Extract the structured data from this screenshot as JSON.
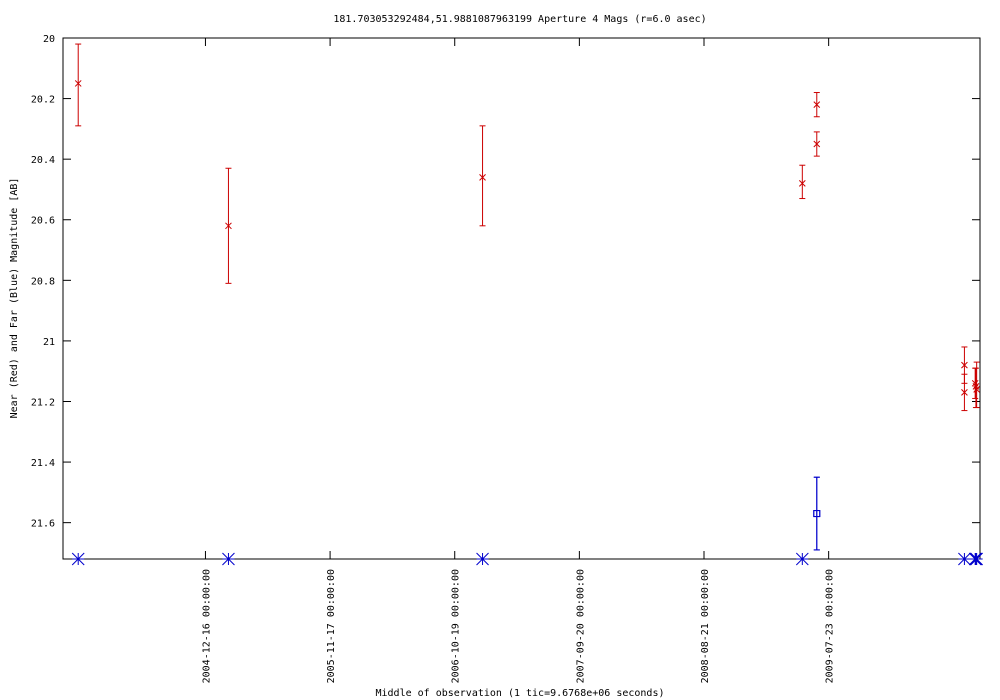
{
  "chart_data": {
    "type": "scatter",
    "title": "181.703053292484,51.9881087963199   Aperture 4 Mags (r=6.0 asec)",
    "xlabel": "Middle of observation (1 tic=9.6768e+06 seconds)",
    "ylabel": "Near (Red) and Far (Blue) Magnitude [AB]",
    "y_inverted": true,
    "ylim": [
      21.72,
      20.0
    ],
    "xlim": [
      "2003-11-28",
      "2010-09-04"
    ],
    "y_ticks": [
      "20",
      "20.2",
      "20.4",
      "20.6",
      "20.8",
      "21",
      "21.2",
      "21.4",
      "21.6"
    ],
    "x_ticks": [
      "2004-12-16 00:00:00",
      "2005-11-17 00:00:00",
      "2006-10-19 00:00:00",
      "2007-09-20 00:00:00",
      "2008-08-21 00:00:00",
      "2009-07-23 00:00:00"
    ],
    "grid": false,
    "legend": "none",
    "series": [
      {
        "color": "#cc0000",
        "marker": "x",
        "points": [
          {
            "x": "2004-01-08",
            "y": 20.15,
            "err_lo": 20.02,
            "err_hi": 20.29
          },
          {
            "x": "2005-02-16",
            "y": 20.62,
            "err_lo": 20.43,
            "err_hi": 20.81
          },
          {
            "x": "2007-01-02",
            "y": 20.46,
            "err_lo": 20.29,
            "err_hi": 20.62
          },
          {
            "x": "2009-05-13",
            "y": 20.48,
            "err_lo": 20.42,
            "err_hi": 20.53
          },
          {
            "x": "2009-06-21",
            "y": 20.22,
            "err_lo": 20.18,
            "err_hi": 20.26
          },
          {
            "x": "2009-06-21",
            "y": 20.35,
            "err_lo": 20.31,
            "err_hi": 20.39
          },
          {
            "x": "2010-07-24",
            "y": 21.08,
            "err_lo": 21.02,
            "err_hi": 21.14
          },
          {
            "x": "2010-07-24",
            "y": 21.17,
            "err_lo": 21.11,
            "err_hi": 21.23
          },
          {
            "x": "2010-08-22",
            "y": 21.14,
            "err_lo": 21.09,
            "err_hi": 21.19
          },
          {
            "x": "2010-08-24",
            "y": 21.15,
            "err_lo": 21.09,
            "err_hi": 21.22
          },
          {
            "x": "2010-08-26",
            "y": 21.16,
            "err_lo": 21.07,
            "err_hi": 21.22
          }
        ]
      },
      {
        "color": "#0000cc",
        "marker": "square",
        "points": [
          {
            "x": "2009-06-21",
            "y": 21.57,
            "err_lo": 21.45,
            "err_hi": 21.69
          },
          {
            "x": "2009-06-21",
            "y": 21.57,
            "err_lo": 21.45,
            "err_hi": 21.69
          }
        ]
      },
      {
        "color": "#0000cc",
        "marker": "star",
        "y_at_axis": true,
        "points": [
          {
            "x": "2004-01-08"
          },
          {
            "x": "2005-02-16"
          },
          {
            "x": "2007-01-02"
          },
          {
            "x": "2009-05-13"
          },
          {
            "x": "2010-07-24"
          },
          {
            "x": "2010-08-22"
          },
          {
            "x": "2010-08-24"
          },
          {
            "x": "2010-08-26"
          }
        ]
      }
    ]
  }
}
